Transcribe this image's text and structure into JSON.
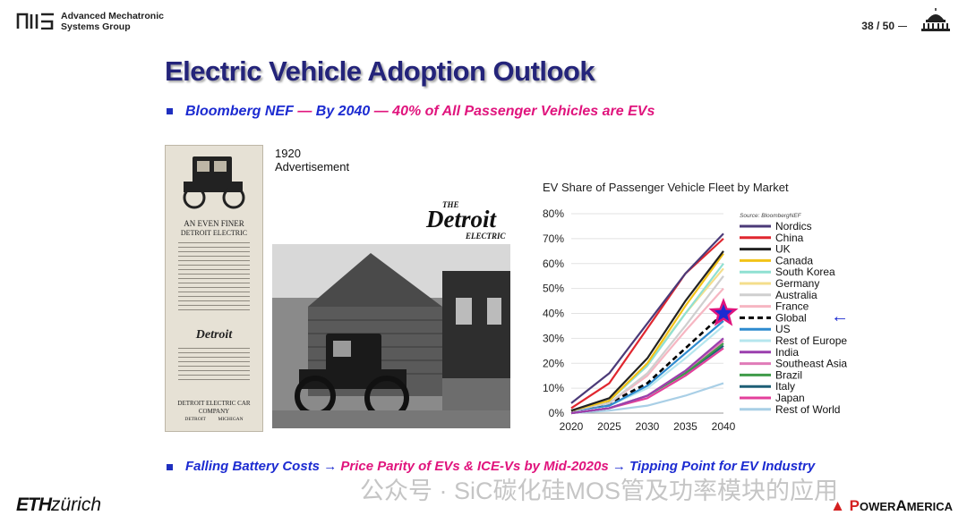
{
  "header": {
    "org_line1": "Advanced Mechatronic",
    "org_line2": "Systems Group",
    "page_number": "38 / 50"
  },
  "slide": {
    "title": "Electric Vehicle Adoption Outlook",
    "subtitle": {
      "part1": "Bloomberg NEF",
      "sep1": " — ",
      "part2": "By 2040",
      "sep2": " — ",
      "part3": "40% of All Passenger Vehicles are EVs"
    },
    "ad": {
      "caption_line1": "1920",
      "caption_line2": "Advertisement",
      "headline1": "AN EVEN FINER",
      "headline2": "DETROIT ELECTRIC",
      "company1": "DETROIT ELECTRIC CAR",
      "company2": "COMPANY",
      "city": "DETROIT          MICHIGAN",
      "logo_top": "THE",
      "logo_main": "Detroit",
      "logo_bottom": "ELECTRIC"
    },
    "footer": {
      "a": "Falling Battery Costs",
      "arrow1": " → ",
      "b": "Price Parity of EVs & ICE-Vs by Mid-2020s",
      "arrow2": " → ",
      "c": "Tipping Point for EV Industry"
    },
    "brand_eth_bold": "ETH",
    "brand_eth_rest": "zürich",
    "brand_pa_p": "P",
    "brand_pa_rest": "OWER",
    "brand_pa_a": "A",
    "brand_pa_rest2": "MERICA",
    "watermark": "公众号 · SiC碳化硅MOS管及功率模块的应用"
  },
  "colors": {
    "title": "#24247a",
    "accent_blue": "#1c2bd1",
    "accent_magenta": "#e0147d"
  },
  "chart_data": {
    "type": "line",
    "title": "EV Share of Passenger Vehicle Fleet by Market",
    "source": "Source: BloombergNEF",
    "x": [
      2020,
      2025,
      2030,
      2035,
      2040
    ],
    "xlim": [
      2020,
      2040
    ],
    "ylim": [
      0,
      80
    ],
    "yticks": [
      "0%",
      "10%",
      "20%",
      "30%",
      "40%",
      "50%",
      "60%",
      "70%",
      "80%"
    ],
    "xticks": [
      "2020",
      "2025",
      "2030",
      "2035",
      "2040"
    ],
    "grid": true,
    "legend_position": "right",
    "highlight": {
      "series": "Global",
      "x": 2040,
      "y": 40,
      "marker": "star"
    },
    "series": [
      {
        "name": "Nordics",
        "color": "#4b3a78",
        "values": [
          4,
          16,
          36,
          56,
          72
        ],
        "dash": false
      },
      {
        "name": "China",
        "color": "#e0262f",
        "values": [
          2,
          12,
          34,
          56,
          70
        ],
        "dash": false
      },
      {
        "name": "UK",
        "color": "#222222",
        "values": [
          1,
          6,
          22,
          45,
          65
        ],
        "dash": false
      },
      {
        "name": "Canada",
        "color": "#f2c318",
        "values": [
          1,
          5,
          20,
          43,
          64
        ],
        "dash": false
      },
      {
        "name": "South Korea",
        "color": "#8fe0d2",
        "values": [
          1,
          5,
          19,
          40,
          60
        ],
        "dash": false
      },
      {
        "name": "Germany",
        "color": "#f4de8c",
        "values": [
          1,
          5,
          20,
          40,
          58
        ],
        "dash": false
      },
      {
        "name": "Australia",
        "color": "#cfcfcf",
        "values": [
          1,
          4,
          16,
          35,
          55
        ],
        "dash": false
      },
      {
        "name": "France",
        "color": "#f6b6c2",
        "values": [
          1,
          4,
          15,
          33,
          50
        ],
        "dash": false
      },
      {
        "name": "Global",
        "color": "#000000",
        "values": [
          1,
          4,
          12,
          26,
          40
        ],
        "dash": true
      },
      {
        "name": "US",
        "color": "#2e8bcf",
        "values": [
          1,
          3,
          11,
          24,
          37
        ],
        "dash": false
      },
      {
        "name": "Rest of Europe",
        "color": "#b5e6ee",
        "values": [
          1,
          3,
          10,
          22,
          35
        ],
        "dash": false
      },
      {
        "name": "India",
        "color": "#9b3fae",
        "values": [
          0,
          2,
          7,
          17,
          30
        ],
        "dash": false
      },
      {
        "name": "Southeast Asia",
        "color": "#e07bb8",
        "values": [
          0,
          2,
          7,
          17,
          29
        ],
        "dash": false
      },
      {
        "name": "Brazil",
        "color": "#3f9b49",
        "values": [
          0,
          2,
          7,
          16,
          28
        ],
        "dash": false
      },
      {
        "name": "Italy",
        "color": "#1d5f76",
        "values": [
          0,
          2,
          7,
          16,
          27
        ],
        "dash": false
      },
      {
        "name": "Japan",
        "color": "#e33f9b",
        "values": [
          0,
          2,
          6,
          15,
          26
        ],
        "dash": false
      },
      {
        "name": "Rest of World",
        "color": "#a9cfe6",
        "values": [
          0,
          1,
          3,
          7,
          12
        ],
        "dash": false
      }
    ]
  }
}
